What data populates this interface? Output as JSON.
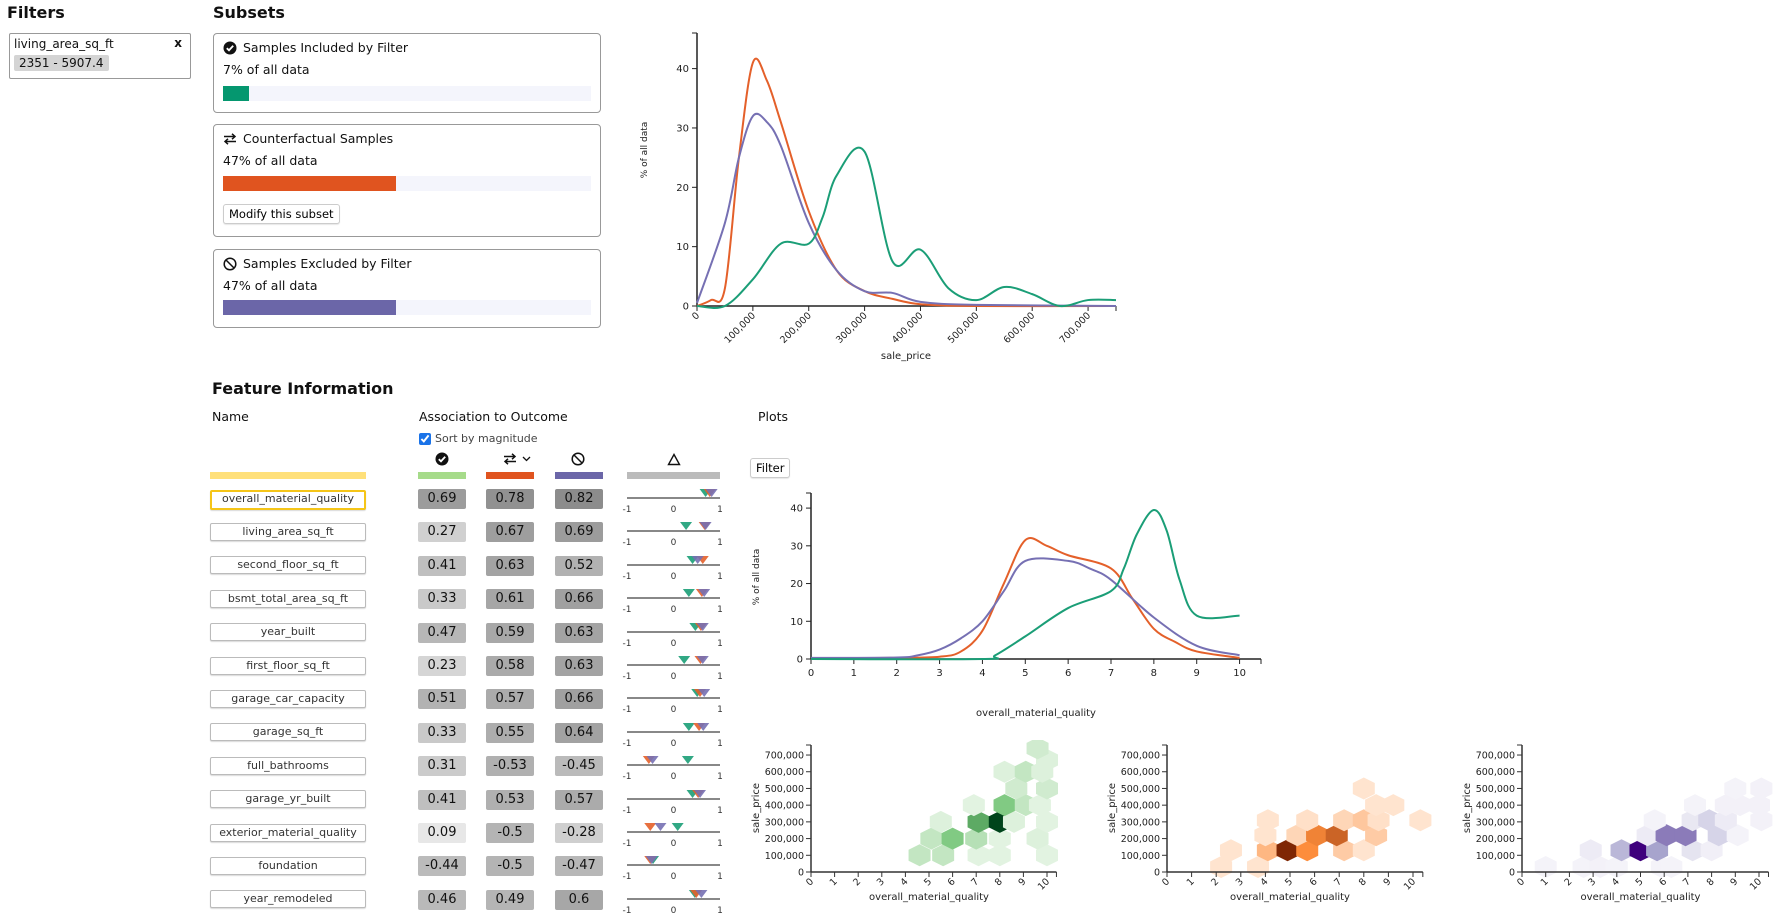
{
  "filters": {
    "title": "Filters",
    "items": [
      {
        "name": "living_area_sq_ft",
        "range": "2351 - 5907.4",
        "remove": "x"
      }
    ]
  },
  "subsets": {
    "title": "Subsets",
    "items": [
      {
        "icon": "check-circle-icon",
        "title": "Samples Included by Filter",
        "percent_label": "7% of all data",
        "fraction": 0.07,
        "color": "#05976f"
      },
      {
        "icon": "swap-arrows-icon",
        "title": "Counterfactual Samples",
        "percent_label": "47% of all data",
        "fraction": 0.47,
        "color": "#e0541f",
        "button": "Modify this subset"
      },
      {
        "icon": "ban-icon",
        "title": "Samples Excluded by Filter",
        "percent_label": "47% of all data",
        "fraction": 0.47,
        "color": "#6b66a8"
      }
    ]
  },
  "feature_info": {
    "title": "Feature Information",
    "name_header": "Name",
    "association_header": "Association to Outcome",
    "sort_label": "Sort by magnitude",
    "sort_checked": true,
    "selected": "overall_material_quality",
    "column_colors": {
      "name": "#ffe07a",
      "included": "#a6db8a",
      "counterfactual": "#e0541f",
      "excluded": "#6b66a8",
      "delta": "#bbbbbb"
    },
    "delta_axis": {
      "min_label": "-1",
      "mid_label": "0",
      "max_label": "1"
    },
    "rows": [
      {
        "name": "overall_material_quality",
        "included": 0.69,
        "counterfactual": 0.78,
        "excluded": 0.82
      },
      {
        "name": "living_area_sq_ft",
        "included": 0.27,
        "counterfactual": 0.67,
        "excluded": 0.69
      },
      {
        "name": "second_floor_sq_ft",
        "included": 0.41,
        "counterfactual": 0.63,
        "excluded": 0.52
      },
      {
        "name": "bsmt_total_area_sq_ft",
        "included": 0.33,
        "counterfactual": 0.61,
        "excluded": 0.66
      },
      {
        "name": "year_built",
        "included": 0.47,
        "counterfactual": 0.59,
        "excluded": 0.63
      },
      {
        "name": "first_floor_sq_ft",
        "included": 0.23,
        "counterfactual": 0.58,
        "excluded": 0.63
      },
      {
        "name": "garage_car_capacity",
        "included": 0.51,
        "counterfactual": 0.57,
        "excluded": 0.66
      },
      {
        "name": "garage_sq_ft",
        "included": 0.33,
        "counterfactual": 0.55,
        "excluded": 0.64
      },
      {
        "name": "full_bathrooms",
        "included": 0.31,
        "counterfactual": -0.53,
        "excluded": -0.45
      },
      {
        "name": "garage_yr_built",
        "included": 0.41,
        "counterfactual": 0.53,
        "excluded": 0.57
      },
      {
        "name": "exterior_material_quality",
        "included": 0.09,
        "counterfactual": -0.5,
        "excluded": -0.28
      },
      {
        "name": "foundation",
        "included": -0.44,
        "counterfactual": -0.5,
        "excluded": -0.47
      },
      {
        "name": "year_remodeled",
        "included": 0.46,
        "counterfactual": 0.49,
        "excluded": 0.6
      }
    ]
  },
  "plots": {
    "title": "Plots",
    "filter_button": "Filter"
  },
  "chart_data": [
    {
      "type": "line",
      "xlabel": "sale_price",
      "ylabel": "% of all data",
      "xlim": [
        0,
        750000
      ],
      "ylim": [
        0,
        46
      ],
      "xticks": [
        0,
        100000,
        200000,
        300000,
        400000,
        500000,
        600000,
        700000
      ],
      "xtick_labels": [
        "0",
        "100,000",
        "200,000",
        "300,000",
        "400,000",
        "500,000",
        "600,000",
        "700,000"
      ],
      "yticks": [
        0,
        10,
        20,
        30,
        40
      ],
      "grid": false,
      "series": [
        {
          "color": "#e4602a",
          "x": [
            0,
            25000,
            50000,
            75000,
            100000,
            125000,
            150000,
            200000,
            250000,
            300000,
            350000,
            400000,
            500000,
            750000
          ],
          "y": [
            0,
            1,
            3,
            25,
            41,
            38,
            31,
            16,
            6,
            2.5,
            1.2,
            0.3,
            0,
            0
          ]
        },
        {
          "color": "#7670b3",
          "x": [
            0,
            50000,
            75000,
            100000,
            125000,
            150000,
            200000,
            250000,
            300000,
            350000,
            400000,
            500000,
            750000
          ],
          "y": [
            0.5,
            14,
            25,
            32,
            31,
            27,
            14,
            6,
            2.5,
            2.2,
            0.7,
            0.2,
            0
          ]
        },
        {
          "color": "#1b9e77",
          "x": [
            0,
            50000,
            100000,
            150000,
            200000,
            225000,
            250000,
            300000,
            350000,
            400000,
            450000,
            500000,
            550000,
            600000,
            650000,
            700000,
            750000
          ],
          "y": [
            0,
            0,
            4.5,
            10.5,
            10.5,
            15,
            22,
            26,
            7.5,
            9.5,
            3,
            1,
            3.2,
            2,
            0,
            1,
            1
          ]
        }
      ]
    },
    {
      "type": "line",
      "xlabel": "overall_material_quality",
      "ylabel": "% of all data",
      "xlim": [
        0,
        10.5
      ],
      "ylim": [
        0,
        44
      ],
      "xticks": [
        0,
        1,
        2,
        3,
        4,
        5,
        6,
        7,
        8,
        9,
        10
      ],
      "xtick_labels": [
        "0",
        "1",
        "2",
        "3",
        "4",
        "5",
        "6",
        "7",
        "8",
        "9",
        "10"
      ],
      "yticks": [
        0,
        10,
        20,
        30,
        40
      ],
      "grid": false,
      "series": [
        {
          "color": "#e4602a",
          "x": [
            0,
            2,
            3,
            3.5,
            4,
            4.5,
            5,
            5.5,
            6,
            7,
            7.5,
            8,
            8.5,
            9,
            10
          ],
          "y": [
            0.2,
            0.3,
            0.6,
            2,
            7.5,
            20,
            31.5,
            30,
            27.5,
            24,
            16,
            8,
            4.5,
            2,
            0.3
          ]
        },
        {
          "color": "#7670b3",
          "x": [
            0,
            2,
            2.5,
            3,
            3.5,
            4,
            4.5,
            5,
            6,
            6.5,
            7,
            8,
            9,
            10
          ],
          "y": [
            0.3,
            0.4,
            1,
            2.5,
            5.5,
            10,
            18,
            26,
            26,
            24,
            21,
            11,
            3.5,
            1
          ]
        },
        {
          "color": "#1b9e77",
          "x": [
            0,
            4,
            4.3,
            5,
            6,
            7,
            7.3,
            7.6,
            8,
            8.3,
            8.6,
            9,
            10
          ],
          "y": [
            0,
            0,
            1,
            6,
            13.5,
            18,
            24,
            33,
            39.5,
            34,
            21,
            11.5,
            11.5
          ]
        }
      ]
    },
    {
      "type": "heatmap",
      "subtype": "hexbin",
      "xlabel": "overall_material_quality",
      "ylabel": "sale_price",
      "xlim": [
        0,
        10.4
      ],
      "ylim": [
        0,
        730000
      ],
      "xticks": [
        0,
        1,
        2,
        3,
        4,
        5,
        6,
        7,
        8,
        9,
        10
      ],
      "yticks": [
        0,
        100000,
        200000,
        300000,
        400000,
        500000,
        600000,
        700000
      ],
      "ytick_labels": [
        "0",
        "100,000",
        "200,000",
        "300,000",
        "400,000",
        "500,000",
        "600,000",
        "700,000"
      ],
      "color_scale": [
        "#f7fcf5",
        "#74c476",
        "#00441b"
      ],
      "bins": [
        [
          4.6,
          100000,
          0.2
        ],
        [
          5.6,
          100000,
          0.2
        ],
        [
          7.1,
          100000,
          0.08
        ],
        [
          8.0,
          100000,
          0.08
        ],
        [
          10.0,
          100000,
          0.08
        ],
        [
          5.1,
          200000,
          0.2
        ],
        [
          6.0,
          200000,
          0.45
        ],
        [
          7.0,
          200000,
          0.25
        ],
        [
          8.0,
          200000,
          0.08
        ],
        [
          9.6,
          200000,
          0.1
        ],
        [
          5.5,
          300000,
          0.1
        ],
        [
          7.1,
          300000,
          0.6
        ],
        [
          8.0,
          300000,
          1.0
        ],
        [
          8.6,
          300000,
          0.1
        ],
        [
          10.0,
          300000,
          0.08
        ],
        [
          6.9,
          400000,
          0.08
        ],
        [
          8.2,
          400000,
          0.45
        ],
        [
          9.1,
          400000,
          0.2
        ],
        [
          9.7,
          400000,
          0.08
        ],
        [
          8.7,
          500000,
          0.15
        ],
        [
          10.0,
          500000,
          0.15
        ],
        [
          8.2,
          600000,
          0.1
        ],
        [
          9.1,
          600000,
          0.2
        ],
        [
          9.8,
          600000,
          0.1
        ],
        [
          10.0,
          670000,
          0.1
        ],
        [
          9.6,
          740000,
          0.15
        ]
      ]
    },
    {
      "type": "heatmap",
      "subtype": "hexbin",
      "xlabel": "overall_material_quality",
      "ylabel": "sale_price",
      "xlim": [
        0,
        10.4
      ],
      "ylim": [
        0,
        730000
      ],
      "xticks": [
        0,
        1,
        2,
        3,
        4,
        5,
        6,
        7,
        8,
        9,
        10
      ],
      "yticks": [
        0,
        100000,
        200000,
        300000,
        400000,
        500000,
        600000,
        700000
      ],
      "ytick_labels": [
        "0",
        "100,000",
        "200,000",
        "300,000",
        "400,000",
        "500,000",
        "600,000",
        "700,000"
      ],
      "color_scale": [
        "#fff5eb",
        "#fd8d3c",
        "#7f2704"
      ],
      "bins": [
        [
          2.2,
          30000,
          0.08
        ],
        [
          3.7,
          30000,
          0.08
        ],
        [
          2.6,
          130000,
          0.08
        ],
        [
          4.1,
          130000,
          0.3
        ],
        [
          4.9,
          130000,
          1.0
        ],
        [
          5.7,
          130000,
          0.5
        ],
        [
          7.2,
          130000,
          0.2
        ],
        [
          8.0,
          130000,
          0.08
        ],
        [
          4.0,
          220000,
          0.08
        ],
        [
          5.3,
          220000,
          0.15
        ],
        [
          6.1,
          220000,
          0.55
        ],
        [
          6.9,
          220000,
          0.7
        ],
        [
          8.5,
          220000,
          0.2
        ],
        [
          4.1,
          310000,
          0.08
        ],
        [
          5.7,
          310000,
          0.1
        ],
        [
          7.2,
          310000,
          0.15
        ],
        [
          8.0,
          310000,
          0.22
        ],
        [
          8.6,
          310000,
          0.1
        ],
        [
          10.3,
          310000,
          0.08
        ],
        [
          8.5,
          400000,
          0.08
        ],
        [
          9.2,
          400000,
          0.08
        ],
        [
          8.0,
          500000,
          0.08
        ]
      ]
    },
    {
      "type": "heatmap",
      "subtype": "hexbin",
      "xlabel": "overall_material_quality",
      "ylabel": "sale_price",
      "xlim": [
        0,
        10.4
      ],
      "ylim": [
        0,
        730000
      ],
      "xticks": [
        0,
        1,
        2,
        3,
        4,
        5,
        6,
        7,
        8,
        9,
        10
      ],
      "yticks": [
        0,
        100000,
        200000,
        300000,
        400000,
        500000,
        600000,
        700000
      ],
      "ytick_labels": [
        "0",
        "100,000",
        "200,000",
        "300,000",
        "400,000",
        "500,000",
        "600,000",
        "700,000"
      ],
      "color_scale": [
        "#fcfbfd",
        "#9e9ac8",
        "#3f007d"
      ],
      "bins": [
        [
          1.0,
          30000,
          0.04
        ],
        [
          2.6,
          30000,
          0.04
        ],
        [
          3.3,
          30000,
          0.05
        ],
        [
          4.0,
          30000,
          0.04
        ],
        [
          5.9,
          30000,
          0.04
        ],
        [
          6.3,
          30000,
          0.04
        ],
        [
          2.9,
          130000,
          0.08
        ],
        [
          4.2,
          130000,
          0.35
        ],
        [
          5.0,
          130000,
          1.0
        ],
        [
          5.7,
          130000,
          0.45
        ],
        [
          7.2,
          130000,
          0.12
        ],
        [
          8.0,
          130000,
          0.06
        ],
        [
          5.3,
          220000,
          0.08
        ],
        [
          6.1,
          220000,
          0.6
        ],
        [
          6.9,
          220000,
          0.6
        ],
        [
          8.3,
          220000,
          0.2
        ],
        [
          9.1,
          220000,
          0.04
        ],
        [
          5.6,
          310000,
          0.04
        ],
        [
          7.2,
          310000,
          0.1
        ],
        [
          7.9,
          310000,
          0.2
        ],
        [
          8.6,
          310000,
          0.08
        ],
        [
          10.1,
          310000,
          0.05
        ],
        [
          7.3,
          400000,
          0.04
        ],
        [
          8.6,
          400000,
          0.05
        ],
        [
          9.2,
          400000,
          0.05
        ],
        [
          10.0,
          400000,
          0.05
        ],
        [
          9.0,
          500000,
          0.04
        ],
        [
          10.1,
          500000,
          0.05
        ]
      ]
    }
  ]
}
